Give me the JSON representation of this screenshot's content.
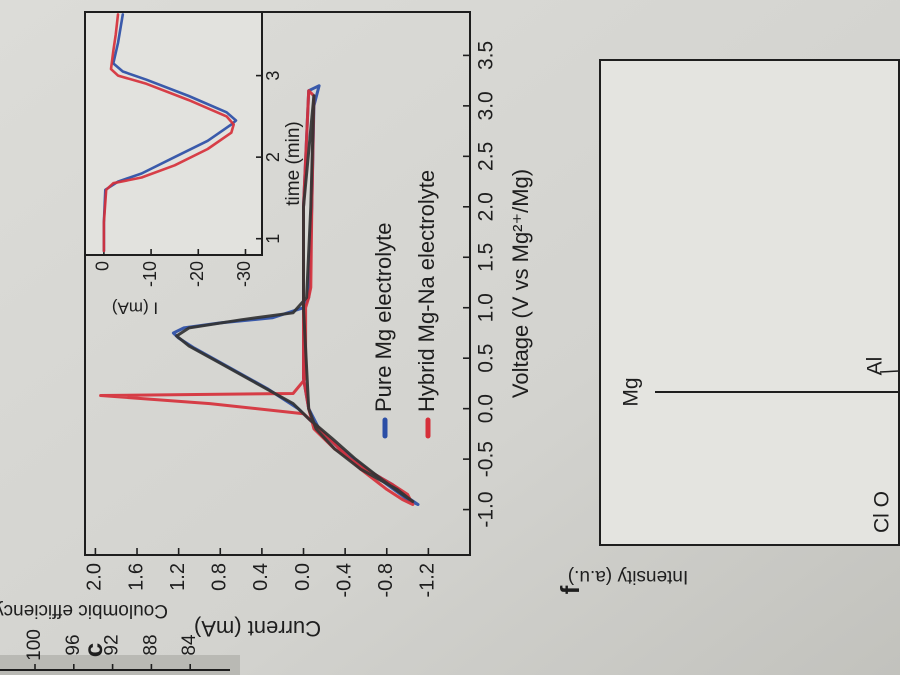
{
  "chart_data": [
    {
      "type": "line",
      "title": "c",
      "xlabel": "Voltage (V vs Mg²⁺/Mg)",
      "ylabel": "Current (mA)",
      "xlim": [
        -1.45,
        3.93
      ],
      "xticks": [
        {
          "value": -1.0,
          "label": "-1.0"
        },
        -0.5,
        {
          "value": 0.0,
          "label": "0.0"
        },
        0.5,
        {
          "value": 1.0,
          "label": "1.0"
        },
        1.5,
        {
          "value": 2.0,
          "label": "2.0"
        },
        2.5,
        {
          "value": 3.0,
          "label": "3.0"
        },
        3.5
      ],
      "ylim": [
        -1.6,
        2.1
      ],
      "yticks": [
        {
          "value": 2.0,
          "label": "2.0"
        },
        1.6,
        1.2,
        0.8,
        0.4,
        {
          "value": 0.0,
          "label": "0.0"
        },
        -0.4,
        -0.8,
        -1.2
      ],
      "legend": "lower right",
      "series": [
        {
          "name": "Pure Mg electrolyte",
          "color": "#2b4ea6",
          "x": [
            0.0,
            -0.2,
            -0.4,
            -0.6,
            -0.75,
            -0.88,
            -0.95,
            -0.9,
            -0.75,
            -0.55,
            -0.35,
            -0.15,
            0.0,
            0.2,
            0.4,
            0.6,
            0.7,
            0.75,
            0.8,
            0.85,
            0.9,
            1.0,
            1.1,
            2.0,
            3.0,
            3.2,
            3.15,
            2.0,
            1.0,
            0.3,
            0.0
          ],
          "values": [
            -0.05,
            -0.15,
            -0.35,
            -0.6,
            -0.85,
            -1.0,
            -1.1,
            -1.0,
            -0.8,
            -0.55,
            -0.3,
            -0.1,
            0.05,
            0.35,
            0.7,
            1.05,
            1.2,
            1.25,
            1.15,
            0.8,
            0.3,
            0.0,
            -0.05,
            -0.08,
            -0.1,
            -0.15,
            -0.05,
            0.0,
            0.0,
            0.0,
            -0.05
          ]
        },
        {
          "name": "Hybrid Mg-Na electrolyte",
          "color": "#d6303a",
          "x": [
            0.0,
            -0.2,
            -0.4,
            -0.6,
            -0.75,
            -0.85,
            -0.95,
            -0.9,
            -0.8,
            -0.6,
            -0.4,
            -0.2,
            -0.05,
            0.05,
            0.13,
            0.15,
            0.3,
            1.0,
            1.1,
            1.2,
            2.0,
            3.1,
            3.15,
            2.0,
            1.0,
            0.3,
            0.0
          ],
          "values": [
            -0.05,
            -0.1,
            -0.3,
            -0.6,
            -0.85,
            -1.0,
            -1.05,
            -0.95,
            -0.8,
            -0.55,
            -0.35,
            -0.15,
            0.0,
            0.9,
            1.95,
            0.1,
            -0.02,
            -0.02,
            -0.05,
            -0.07,
            -0.08,
            -0.1,
            -0.05,
            0.0,
            0.0,
            0.0,
            -0.05
          ]
        },
        {
          "color": "#333333",
          "x": [
            0.0,
            -0.2,
            -0.4,
            -0.6,
            -0.8,
            -0.92,
            -0.85,
            -0.7,
            -0.5,
            -0.3,
            -0.1,
            0.05,
            0.25,
            0.45,
            0.62,
            0.72,
            0.8,
            0.88,
            0.95,
            1.1,
            2.0,
            3.1,
            2.0,
            1.0,
            0.0
          ],
          "values": [
            -0.05,
            -0.12,
            -0.3,
            -0.55,
            -0.9,
            -1.05,
            -0.95,
            -0.75,
            -0.5,
            -0.28,
            -0.05,
            0.1,
            0.45,
            0.8,
            1.1,
            1.22,
            1.1,
            0.6,
            0.1,
            -0.03,
            -0.07,
            -0.1,
            0.0,
            0.0,
            -0.05
          ]
        }
      ]
    },
    {
      "type": "line",
      "xlabel": "time (min)",
      "ylabel": "I (mA)",
      "xlim": [
        0.8,
        3.78
      ],
      "xticks": [
        1,
        2,
        3
      ],
      "ylim": [
        -33.5,
        4
      ],
      "yticks": [
        0,
        -10,
        -20,
        -30
      ],
      "series": [
        {
          "color": "#2b4ea6",
          "x": [
            0.85,
            1.2,
            1.6,
            1.7,
            1.8,
            2.0,
            2.2,
            2.4,
            2.45,
            2.55,
            2.75,
            2.95,
            3.05,
            3.15,
            3.4,
            3.75
          ],
          "values": [
            0,
            0,
            -0.3,
            -3,
            -8,
            -15,
            -22,
            -27,
            -28,
            -26,
            -18,
            -9,
            -4,
            -2,
            -3,
            -4
          ]
        },
        {
          "color": "#d6303a",
          "x": [
            0.85,
            1.2,
            1.6,
            1.68,
            1.75,
            1.9,
            2.1,
            2.3,
            2.4,
            2.5,
            2.7,
            2.9,
            3.0,
            3.08,
            3.3,
            3.5,
            3.75
          ],
          "values": [
            0,
            0,
            -0.5,
            -2,
            -8,
            -15,
            -22,
            -27,
            -27.5,
            -26,
            -18,
            -9,
            -3,
            -1.5,
            -2,
            -2.5,
            -3
          ]
        }
      ]
    },
    {
      "type": "spectrum",
      "title": "f",
      "ylabel": "Intensity (a.u.)",
      "annotations": [
        "Mg",
        "Al",
        "Cl O"
      ]
    },
    {
      "type": "axis",
      "ylabel": "Coulombic efficiency (%)",
      "ylim": [
        82,
        102
      ],
      "yticks": [
        100,
        96,
        92,
        88,
        84
      ]
    }
  ]
}
